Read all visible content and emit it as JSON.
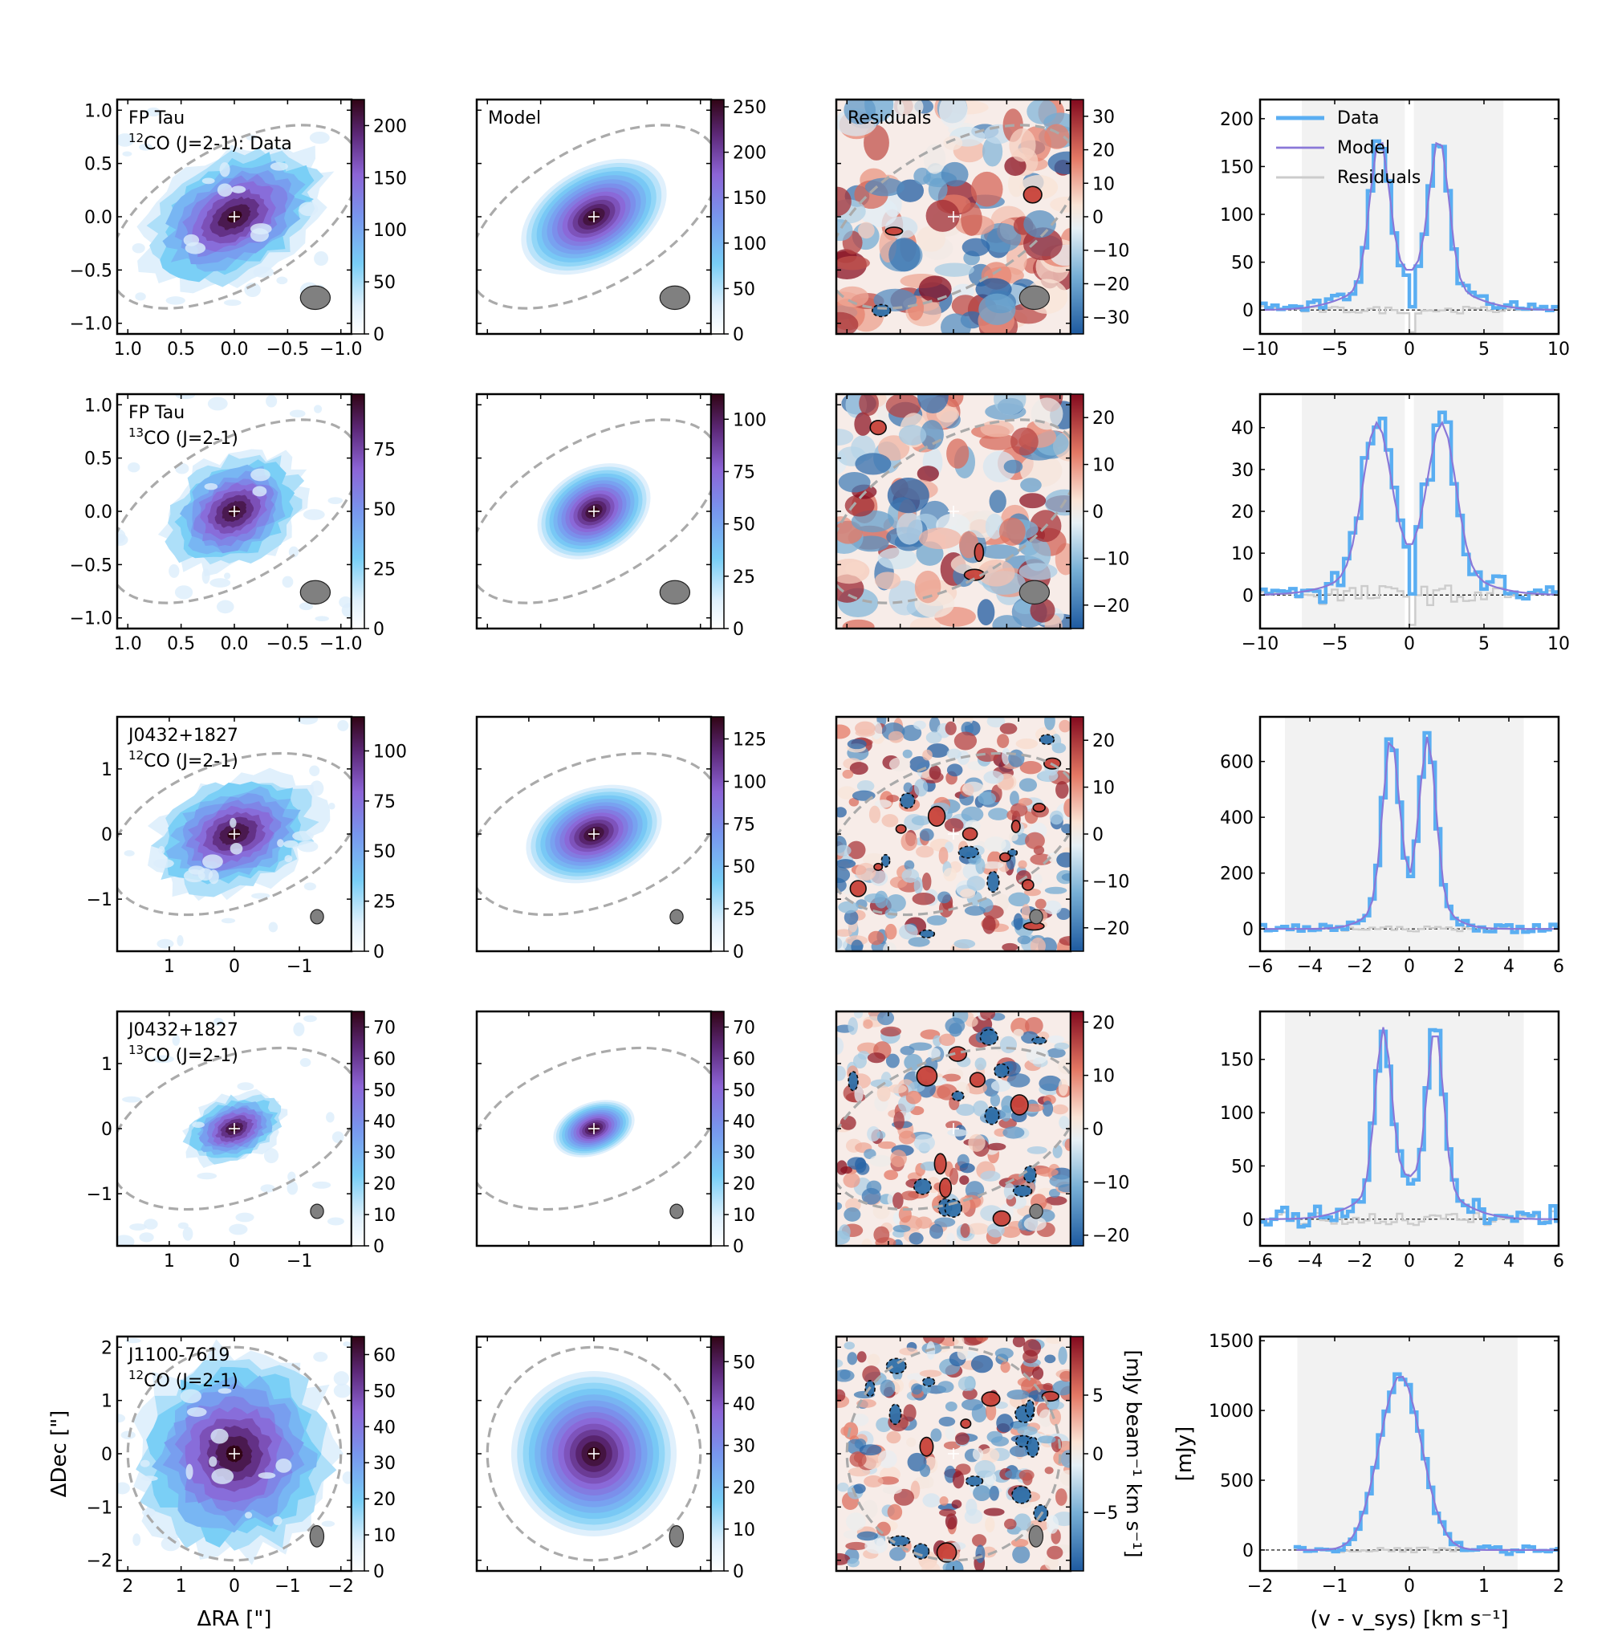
{
  "figure": {
    "xlabel_map": "ΔRA [\"]",
    "ylabel_map": "ΔDec [\"]",
    "colorbar_label": "[mJy beam⁻¹ km s⁻¹]",
    "ylabel_spec": "[mJy]",
    "xlabel_spec": "(v - v_sys) [km s⁻¹]",
    "legend": [
      "Data",
      "Model",
      "Residuals"
    ],
    "model_title": "Model",
    "residual_title": "Residuals",
    "colors": {
      "data": "#5aaef2",
      "model": "#8a78d8",
      "residual": "#cccccc",
      "window": "#f2f2f2",
      "ellipse": "#aaaaaa",
      "beam": "#808080"
    }
  },
  "chart_data": [
    {
      "row": 0,
      "type": "heatmap",
      "source": "FP Tau",
      "line": "CO (J=2-1): Data",
      "iso": "12",
      "extent": 1.1,
      "xticks": [
        "1.0",
        "0.5",
        "0.0",
        "−0.5",
        "−1.0"
      ],
      "xtick_values": [
        1.0,
        0.5,
        0.0,
        -0.5,
        -1.0
      ],
      "yticks": [
        "1.0",
        "0.5",
        "0.0",
        "−0.5",
        "−1.0"
      ],
      "ytick_values": [
        1.0,
        0.5,
        0.0,
        -0.5,
        -1.0
      ],
      "disk": {
        "major": 0.55,
        "minor": 0.34,
        "pa": 60
      },
      "ellipse": {
        "a": 1.3,
        "b": 0.65,
        "pa": 60
      },
      "beam": {
        "ra": -0.76,
        "dec": -0.76,
        "a": 0.14,
        "b": 0.11
      },
      "data_cbar": {
        "max": 225,
        "ticks": [
          0,
          50,
          100,
          150,
          200
        ]
      },
      "model_cbar": {
        "max": 258,
        "ticks": [
          0,
          50,
          100,
          150,
          200,
          250
        ]
      },
      "resid_cbar": {
        "min": -35,
        "max": 35,
        "ticks": [
          30,
          20,
          10,
          0,
          -10,
          -20,
          -30
        ]
      },
      "spectrum": {
        "xlim": [
          -10,
          10
        ],
        "ylim": [
          -25,
          220
        ],
        "xticks": [
          -10,
          -5,
          0,
          5,
          10
        ],
        "yticks": [
          0,
          50,
          100,
          150,
          200
        ],
        "windows": [
          [
            -7.2,
            -0.3
          ],
          [
            0.3,
            6.3
          ]
        ],
        "v0": -10,
        "dv": 0.4,
        "two_peak": true,
        "peak_pos": 2.0,
        "peak_width": 0.9,
        "peak_amp": 190,
        "model_amp": 175,
        "noise": 6,
        "baseline": 12
      }
    },
    {
      "row": 1,
      "type": "heatmap",
      "source": "FP Tau",
      "line": "CO (J=2-1)",
      "iso": "13",
      "extent": 1.1,
      "xticks": [
        "1.0",
        "0.5",
        "0.0",
        "−0.5",
        "−1.0"
      ],
      "xtick_values": [
        1.0,
        0.5,
        0.0,
        -0.5,
        -1.0
      ],
      "yticks": [
        "1.0",
        "0.5",
        "0.0",
        "−0.5",
        "−1.0"
      ],
      "ytick_values": [
        1.0,
        0.5,
        0.0,
        -0.5,
        -1.0
      ],
      "disk": {
        "major": 0.42,
        "minor": 0.3,
        "pa": 60
      },
      "ellipse": {
        "a": 1.3,
        "b": 0.65,
        "pa": 60
      },
      "beam": {
        "ra": -0.76,
        "dec": -0.76,
        "a": 0.14,
        "b": 0.11
      },
      "data_cbar": {
        "max": 98,
        "ticks": [
          0,
          25,
          50,
          75
        ]
      },
      "model_cbar": {
        "max": 112,
        "ticks": [
          0,
          25,
          50,
          75,
          100
        ]
      },
      "resid_cbar": {
        "min": -25,
        "max": 25,
        "ticks": [
          20,
          10,
          0,
          -10,
          -20
        ]
      },
      "spectrum": {
        "xlim": [
          -10,
          10
        ],
        "ylim": [
          -8,
          48
        ],
        "xticks": [
          -10,
          -5,
          0,
          5,
          10
        ],
        "yticks": [
          0,
          10,
          20,
          30,
          40
        ],
        "windows": [
          [
            -7.2,
            -0.3
          ],
          [
            0.3,
            6.3
          ]
        ],
        "v0": -10,
        "dv": 0.4,
        "two_peak": true,
        "peak_pos": 2.2,
        "peak_width": 1.3,
        "peak_amp": 42,
        "model_amp": 40,
        "noise": 4,
        "baseline": 3
      }
    },
    {
      "row": 2,
      "type": "heatmap",
      "source": "J0432+1827",
      "line": "CO (J=2-1)",
      "iso": "12",
      "extent": 1.8,
      "xticks": [
        "1",
        "0",
        "−1"
      ],
      "xtick_values": [
        1,
        0,
        -1
      ],
      "yticks": [
        "1",
        "0",
        "−1"
      ],
      "ytick_values": [
        1,
        0,
        -1
      ],
      "disk": {
        "major": 0.8,
        "minor": 0.52,
        "pa": 70
      },
      "ellipse": {
        "a": 2.0,
        "b": 1.1,
        "pa": 70
      },
      "beam": {
        "ra": -1.27,
        "dec": -1.27,
        "a": 0.1,
        "b": 0.11
      },
      "data_cbar": {
        "max": 117,
        "ticks": [
          0,
          25,
          50,
          75,
          100
        ]
      },
      "model_cbar": {
        "max": 138,
        "ticks": [
          0,
          25,
          50,
          75,
          100,
          125
        ]
      },
      "resid_cbar": {
        "min": -25,
        "max": 25,
        "ticks": [
          20,
          10,
          0,
          -10,
          -20
        ]
      },
      "spectrum": {
        "xlim": [
          -6,
          6
        ],
        "ylim": [
          -80,
          760
        ],
        "xticks": [
          -6,
          -4,
          -2,
          0,
          2,
          4,
          6
        ],
        "yticks": [
          0,
          200,
          400,
          600
        ],
        "windows": [
          [
            -5.0,
            4.6
          ]
        ],
        "v0": -6,
        "dv": 0.22,
        "two_peak": true,
        "peak_pos": 0.75,
        "peak_width": 0.45,
        "peak_amp": 700,
        "model_amp": 670,
        "noise": 15,
        "baseline": 30
      }
    },
    {
      "row": 3,
      "type": "heatmap",
      "source": "J0432+1827",
      "line": "CO (J=2-1)",
      "iso": "13",
      "extent": 1.8,
      "xticks": [
        "1",
        "0",
        "−1"
      ],
      "xtick_values": [
        1,
        0,
        -1
      ],
      "yticks": [
        "1",
        "0",
        "−1"
      ],
      "ytick_values": [
        1,
        0,
        -1
      ],
      "disk": {
        "major": 0.48,
        "minor": 0.3,
        "pa": 70
      },
      "ellipse": {
        "a": 2.0,
        "b": 1.1,
        "pa": 70
      },
      "beam": {
        "ra": -1.27,
        "dec": -1.27,
        "a": 0.1,
        "b": 0.11
      },
      "data_cbar": {
        "max": 75,
        "ticks": [
          0,
          10,
          20,
          30,
          40,
          50,
          60,
          70
        ]
      },
      "model_cbar": {
        "max": 75,
        "ticks": [
          0,
          10,
          20,
          30,
          40,
          50,
          60,
          70
        ]
      },
      "resid_cbar": {
        "min": -22,
        "max": 22,
        "ticks": [
          20,
          10,
          0,
          -10,
          -20
        ]
      },
      "spectrum": {
        "xlim": [
          -6,
          6
        ],
        "ylim": [
          -25,
          195
        ],
        "xticks": [
          -6,
          -4,
          -2,
          0,
          2,
          4,
          6
        ],
        "yticks": [
          0,
          50,
          100,
          150
        ],
        "windows": [
          [
            -5.0,
            4.6
          ]
        ],
        "v0": -6,
        "dv": 0.22,
        "two_peak": true,
        "peak_pos": 1.05,
        "peak_width": 0.45,
        "peak_amp": 180,
        "model_amp": 175,
        "noise": 10,
        "baseline": 20
      }
    },
    {
      "row": 4,
      "type": "heatmap",
      "source": "J1100-7619",
      "line": "CO (J=2-1)",
      "iso": "12",
      "extent": 2.2,
      "xticks": [
        "2",
        "1",
        "0",
        "−1",
        "−2"
      ],
      "xtick_values": [
        2,
        1,
        0,
        -1,
        -2
      ],
      "yticks": [
        "2",
        "1",
        "0",
        "−1",
        "−2"
      ],
      "ytick_values": [
        2,
        1,
        0,
        -1,
        -2
      ],
      "disk": {
        "major": 1.15,
        "minor": 1.15,
        "pa": 0
      },
      "ellipse": {
        "a": 2.0,
        "b": 2.0,
        "pa": 0
      },
      "beam": {
        "ra": -1.55,
        "dec": -1.55,
        "a": 0.13,
        "b": 0.2
      },
      "data_cbar": {
        "max": 65,
        "ticks": [
          0,
          10,
          20,
          30,
          40,
          50,
          60
        ]
      },
      "model_cbar": {
        "max": 56,
        "ticks": [
          0,
          10,
          20,
          30,
          40,
          50
        ]
      },
      "resid_cbar": {
        "min": -10,
        "max": 10,
        "ticks": [
          5,
          0,
          -5
        ]
      },
      "spectrum": {
        "xlim": [
          -2,
          2
        ],
        "ylim": [
          -150,
          1530
        ],
        "xticks": [
          -2,
          -1,
          0,
          1,
          2
        ],
        "yticks": [
          0,
          500,
          1000,
          1500
        ],
        "windows": [
          [
            -1.5,
            1.45
          ]
        ],
        "v0": -1.55,
        "dv": 0.075,
        "two_peak": false,
        "peak_pos": 0.0,
        "peak_width": 0.0,
        "peak_amp": 1400,
        "model_amp": 1250,
        "noise": 30,
        "baseline": 40
      }
    }
  ]
}
